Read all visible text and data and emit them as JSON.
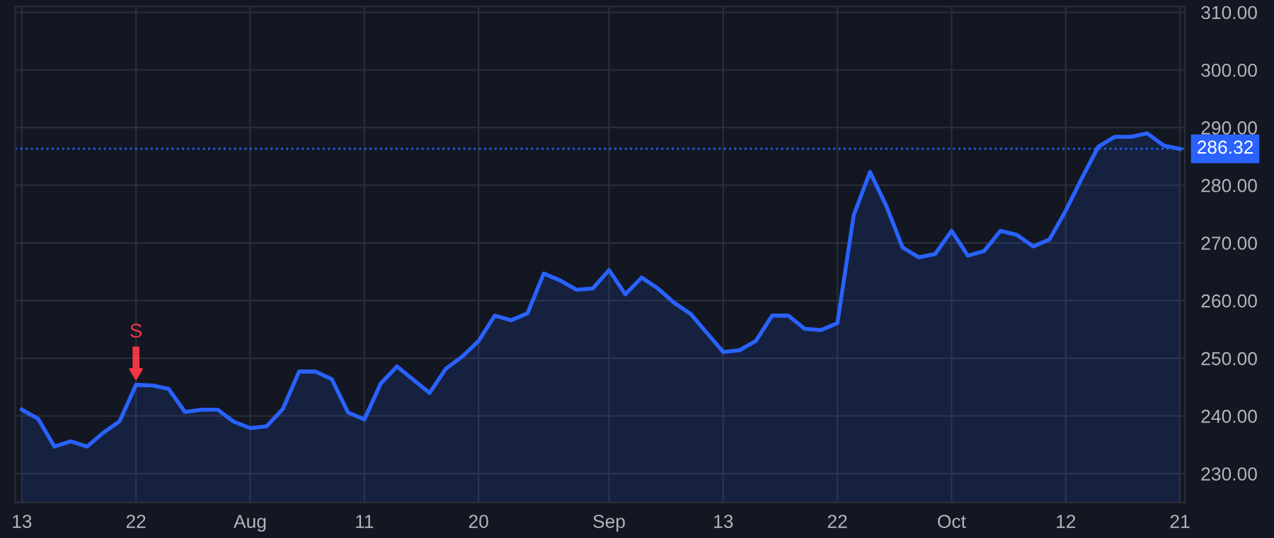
{
  "chart_data": {
    "type": "area",
    "categories": [
      "13",
      null,
      null,
      null,
      null,
      null,
      null,
      "22",
      null,
      null,
      null,
      null,
      null,
      null,
      "Aug",
      null,
      null,
      null,
      null,
      null,
      null,
      "11",
      null,
      null,
      null,
      null,
      null,
      null,
      "20",
      null,
      null,
      null,
      null,
      null,
      null,
      null,
      "Sep",
      null,
      null,
      null,
      null,
      null,
      null,
      "13",
      null,
      null,
      null,
      null,
      null,
      null,
      "22",
      null,
      null,
      null,
      null,
      null,
      null,
      "Oct",
      null,
      null,
      null,
      null,
      null,
      null,
      "12",
      null,
      null,
      null,
      null,
      null,
      null,
      "21"
    ],
    "series": [
      {
        "color": "#2962ff",
        "values": [
          241.1,
          239.5,
          234.7,
          235.6,
          234.7,
          237.1,
          239.1,
          245.4,
          245.3,
          244.7,
          240.7,
          241.1,
          241.1,
          239.0,
          237.9,
          238.2,
          241.2,
          247.7,
          247.7,
          246.4,
          240.6,
          239.4,
          245.6,
          248.6,
          246.3,
          244.0,
          248.2,
          250.3,
          253.0,
          257.4,
          256.6,
          257.8,
          264.7,
          263.5,
          261.9,
          262.1,
          265.3,
          261.1,
          264.0,
          262.1,
          259.6,
          257.7,
          254.4,
          251.1,
          251.4,
          253.0,
          257.4,
          257.4,
          255.1,
          254.9,
          256.1,
          274.8,
          282.3,
          276.4,
          269.2,
          267.5,
          268.1,
          272.1,
          267.8,
          268.6,
          272.1,
          271.4,
          269.4,
          270.6,
          275.6,
          281.3,
          286.7,
          288.4,
          288.4,
          289.0,
          286.9,
          286.3
        ]
      }
    ],
    "ylim": [
      225,
      311
    ],
    "yticks": [
      {
        "value": 230,
        "label": "230.00"
      },
      {
        "value": 240,
        "label": "240.00"
      },
      {
        "value": 250,
        "label": "250.00"
      },
      {
        "value": 260,
        "label": "260.00"
      },
      {
        "value": 270,
        "label": "270.00"
      },
      {
        "value": 280,
        "label": "280.00"
      },
      {
        "value": 290,
        "label": "290.00"
      },
      {
        "value": 300,
        "label": "300.00"
      },
      {
        "value": 310,
        "label": "310.00"
      }
    ],
    "ref_lines": [
      {
        "axis": "y",
        "value": 286.32,
        "label": "286.32",
        "color": "#2962ff",
        "line_style": "dotted"
      }
    ],
    "annotations": [
      {
        "text": "S",
        "x": "22",
        "y": 245.4
      }
    ],
    "grid": true,
    "legend": false,
    "marker": "none",
    "line_style": "solid"
  }
}
